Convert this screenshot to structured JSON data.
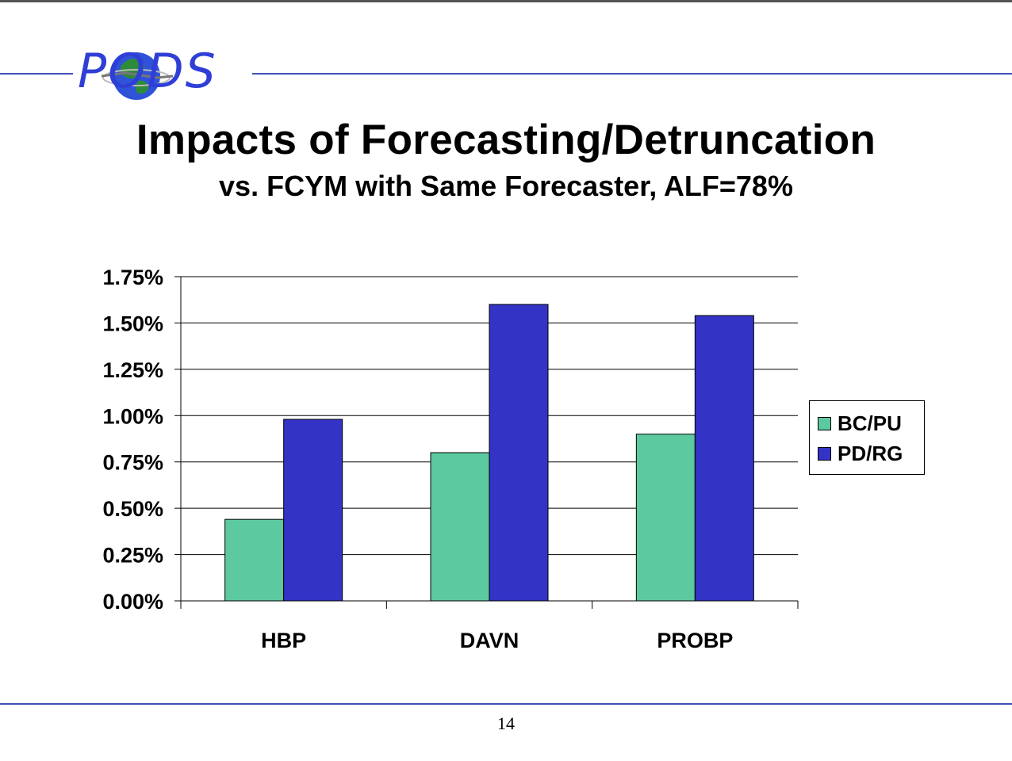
{
  "slide": {
    "logo_text": "PODS",
    "title": "Impacts of Forecasting/Detruncation",
    "subtitle": "vs. FCYM with Same Forecaster, ALF=78%",
    "page_number": "14"
  },
  "colors": {
    "accent_rule": "#3f4fb8",
    "logo_blue": "#2f3fd6",
    "globe_green": "#2e8b3a"
  },
  "chart_data": {
    "type": "bar",
    "title": "",
    "xlabel": "",
    "ylabel": "",
    "categories": [
      "HBP",
      "DAVN",
      "PROBP"
    ],
    "series": [
      {
        "name": "BC/PU",
        "color": "#5cc99f",
        "values": [
          0.44,
          0.8,
          0.9
        ]
      },
      {
        "name": "PD/RG",
        "color": "#3333c6",
        "values": [
          0.98,
          1.6,
          1.54
        ]
      }
    ],
    "ylim": [
      0,
      1.75
    ],
    "yticks": [
      "0.00%",
      "0.25%",
      "0.50%",
      "0.75%",
      "1.00%",
      "1.25%",
      "1.50%",
      "1.75%"
    ],
    "ytick_values": [
      0,
      0.25,
      0.5,
      0.75,
      1.0,
      1.25,
      1.5,
      1.75
    ],
    "grid": true,
    "legend_position": "right"
  }
}
